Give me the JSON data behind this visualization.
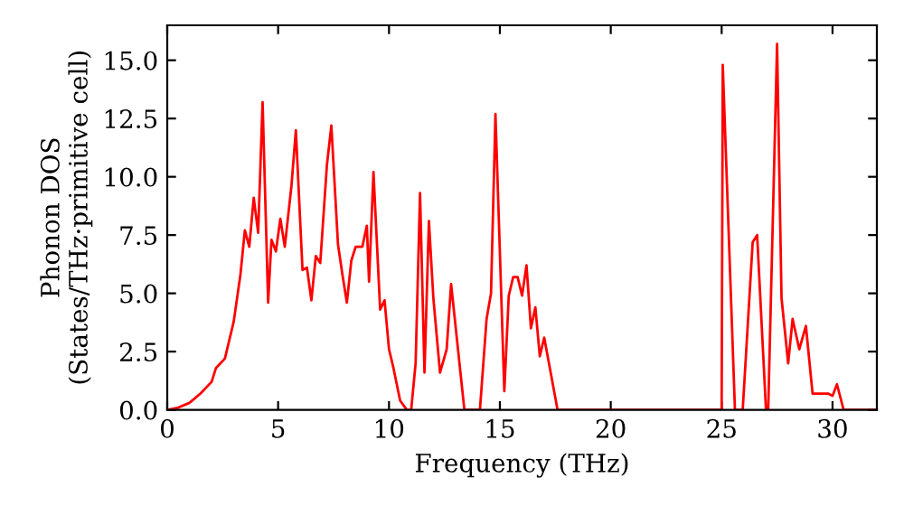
{
  "chart_data": {
    "type": "line",
    "xlabel": "Frequency (THz)",
    "ylabel": "Phonon DOS\n(States/THz·primitive cell)",
    "series": [
      {
        "color": "#ff0000",
        "x": [
          0,
          0.5,
          1,
          1.5,
          2,
          2.2,
          2.6,
          3,
          3.3,
          3.5,
          3.7,
          3.9,
          4.1,
          4.3,
          4.55,
          4.7,
          4.9,
          5.1,
          5.3,
          5.6,
          5.8,
          6.1,
          6.3,
          6.5,
          6.7,
          6.9,
          7.2,
          7.4,
          7.7,
          7.9,
          8.1,
          8.3,
          8.5,
          8.8,
          9.0,
          9.1,
          9.3,
          9.6,
          9.8,
          10.0,
          10.2,
          10.5,
          10.8,
          11.0,
          11.2,
          11.4,
          11.6,
          11.8,
          12.0,
          12.3,
          12.6,
          12.8,
          13.0,
          13.4,
          14.1,
          14.4,
          14.6,
          14.8,
          15.2,
          15.4,
          15.6,
          15.8,
          16.0,
          16.2,
          16.4,
          16.6,
          16.8,
          17.0,
          17.6,
          25.0,
          25.05,
          25.6,
          25.95,
          26.4,
          26.6,
          27.0,
          27.1,
          27.5,
          27.7,
          28.0,
          28.2,
          28.5,
          28.8,
          29.1,
          29.8,
          30.0,
          30.2,
          30.5,
          32
        ],
        "values": [
          0,
          0.1,
          0.3,
          0.7,
          1.2,
          1.8,
          2.2,
          3.8,
          5.8,
          7.7,
          7.0,
          9.1,
          7.6,
          13.2,
          4.6,
          7.3,
          6.8,
          8.2,
          7.0,
          9.6,
          12.0,
          6.0,
          6.1,
          4.7,
          6.6,
          6.3,
          10.5,
          12.2,
          7.1,
          5.8,
          4.6,
          6.4,
          7.0,
          7.0,
          7.9,
          5.5,
          10.2,
          4.3,
          4.7,
          2.6,
          1.8,
          0.4,
          0,
          0,
          2.0,
          9.3,
          1.6,
          8.1,
          4.8,
          1.6,
          2.6,
          5.4,
          3.6,
          0,
          0,
          3.9,
          5.0,
          12.7,
          0.8,
          4.9,
          5.7,
          5.7,
          4.9,
          6.2,
          3.5,
          4.4,
          2.3,
          3.1,
          0,
          0,
          14.8,
          0,
          0,
          7.2,
          7.5,
          0,
          0,
          15.7,
          4.8,
          2.0,
          3.9,
          2.6,
          3.6,
          0.7,
          0.7,
          0.6,
          1.1,
          0,
          0
        ]
      }
    ],
    "xlim": [
      0,
      32
    ],
    "xticks": [
      0,
      5,
      10,
      15,
      20,
      25,
      30
    ],
    "ylim": [
      0,
      16.5
    ],
    "yticks": [
      {
        "value": 0,
        "label": "0.0"
      },
      {
        "value": 2.5,
        "label": "2.5"
      },
      {
        "value": 5,
        "label": "5.0"
      },
      {
        "value": 7.5,
        "label": "7.5"
      },
      {
        "value": 10,
        "label": "10.0"
      },
      {
        "value": 12.5,
        "label": "12.5"
      },
      {
        "value": 15,
        "label": "15.0"
      }
    ],
    "grid": false,
    "legend": false
  }
}
